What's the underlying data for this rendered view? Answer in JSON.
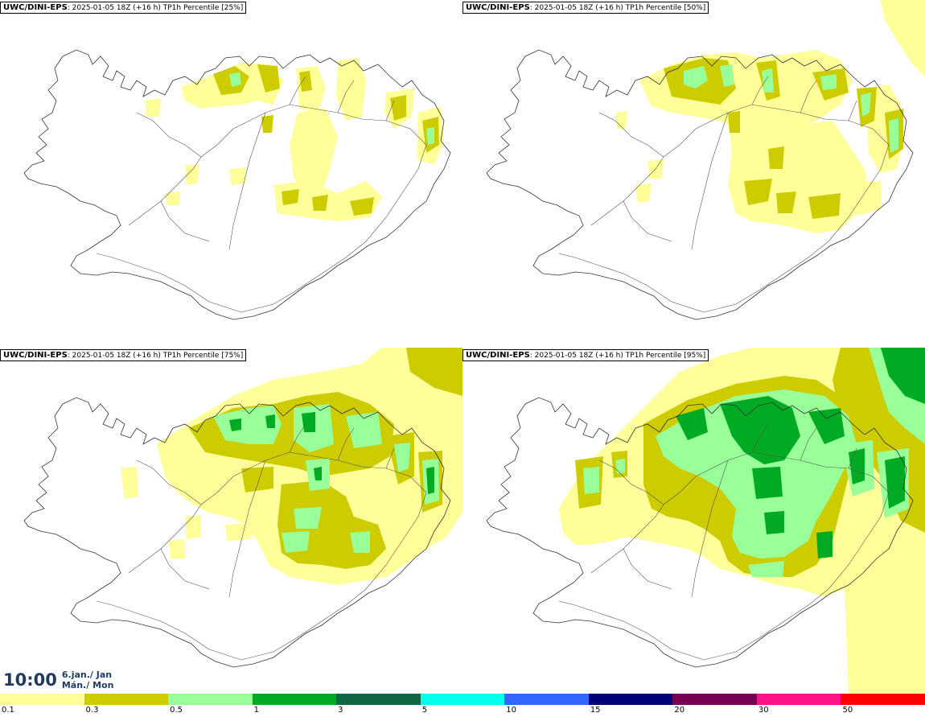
{
  "panels": [
    {
      "source": "UWC/DINI-EPS",
      "subtitle": ": 2025-01-05 18Z (+16 h) TP1h Percentile [25%]",
      "percentile": 25
    },
    {
      "source": "UWC/DINI-EPS",
      "subtitle": ": 2025-01-05 18Z (+16 h) TP1h Percentile [50%]",
      "percentile": 50
    },
    {
      "source": "UWC/DINI-EPS",
      "subtitle": ": 2025-01-05 18Z (+16 h) TP1h Percentile [75%]",
      "percentile": 75
    },
    {
      "source": "UWC/DINI-EPS",
      "subtitle": ": 2025-01-05 18Z (+16 h) TP1h Percentile [95%]",
      "percentile": 95
    }
  ],
  "valid_time": {
    "time": "10:00",
    "date_line1": "6.jan./ Jan",
    "date_line2": "Mán./ Mon"
  },
  "legend": {
    "colors": [
      "#ffff99",
      "#cccc00",
      "#99ff99",
      "#00aa22",
      "#116644",
      "#00ffee",
      "#3366ff",
      "#000077",
      "#770055",
      "#ff1188",
      "#ff0000"
    ],
    "labels": [
      "0.1",
      "0.3",
      "0.5",
      "1",
      "3",
      "5",
      "10",
      "15",
      "20",
      "30",
      "50"
    ]
  }
}
